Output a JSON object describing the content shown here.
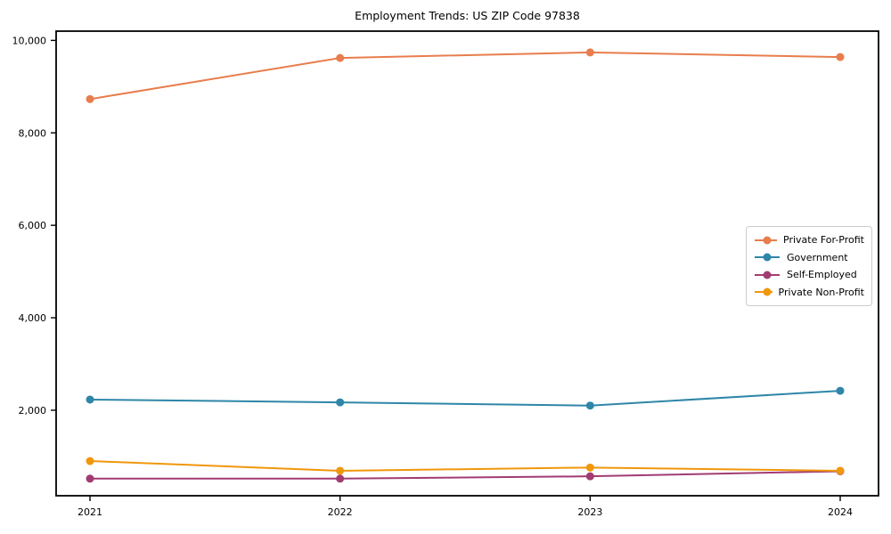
{
  "chart_data": {
    "type": "line",
    "title": "Employment Trends: US ZIP Code 97838",
    "x": [
      2021,
      2022,
      2023,
      2024
    ],
    "xtick_labels": [
      "2021",
      "2022",
      "2023",
      "2024"
    ],
    "yticks": [
      2000,
      4000,
      6000,
      8000,
      10000
    ],
    "ytick_labels": [
      "2,000",
      "4,000",
      "6,000",
      "8,000",
      "10,000"
    ],
    "ylim": [
      150,
      10200
    ],
    "grid": false,
    "legend_position": "center right",
    "marker": "circle",
    "series": [
      {
        "name": "Private For-Profit",
        "color": "#e87d4d",
        "values": [
          8730,
          9620,
          9740,
          9640
        ]
      },
      {
        "name": "Government",
        "color": "#2e86a8",
        "values": [
          2230,
          2170,
          2100,
          2420
        ]
      },
      {
        "name": "Self-Employed",
        "color": "#a23b72",
        "values": [
          520,
          520,
          570,
          680
        ]
      },
      {
        "name": "Private Non-Profit",
        "color": "#f0970b",
        "values": [
          900,
          690,
          760,
          690
        ]
      }
    ]
  }
}
